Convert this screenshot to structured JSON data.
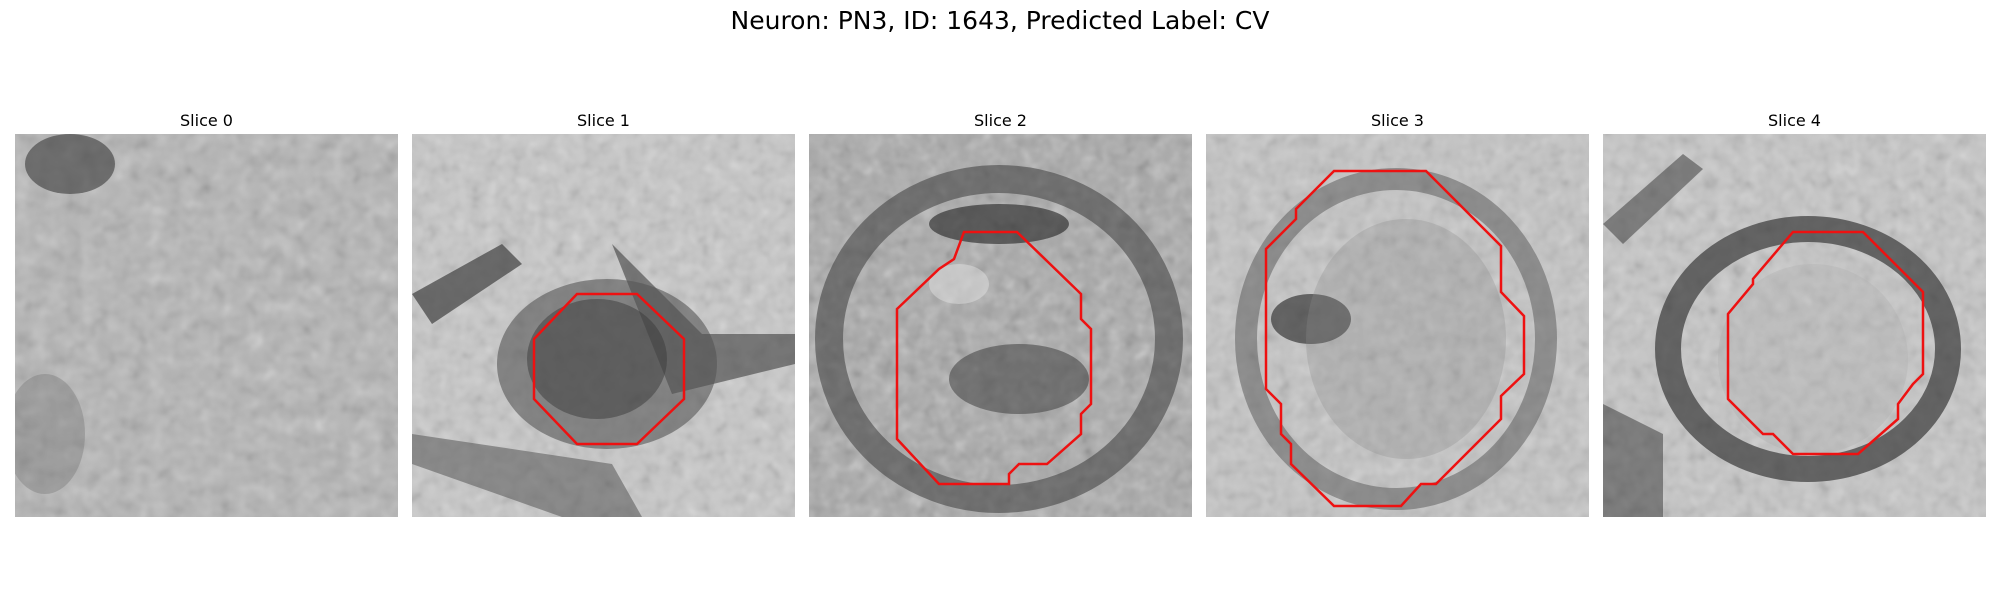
{
  "figure": {
    "title": "Neuron: PN3, ID: 1643, Predicted Label: CV",
    "overlay_color": "#ee1111"
  },
  "slices": [
    {
      "title": "Slice 0",
      "has_contour": false
    },
    {
      "title": "Slice 1",
      "has_contour": true
    },
    {
      "title": "Slice 2",
      "has_contour": true
    },
    {
      "title": "Slice 3",
      "has_contour": true
    },
    {
      "title": "Slice 4",
      "has_contour": true
    }
  ]
}
